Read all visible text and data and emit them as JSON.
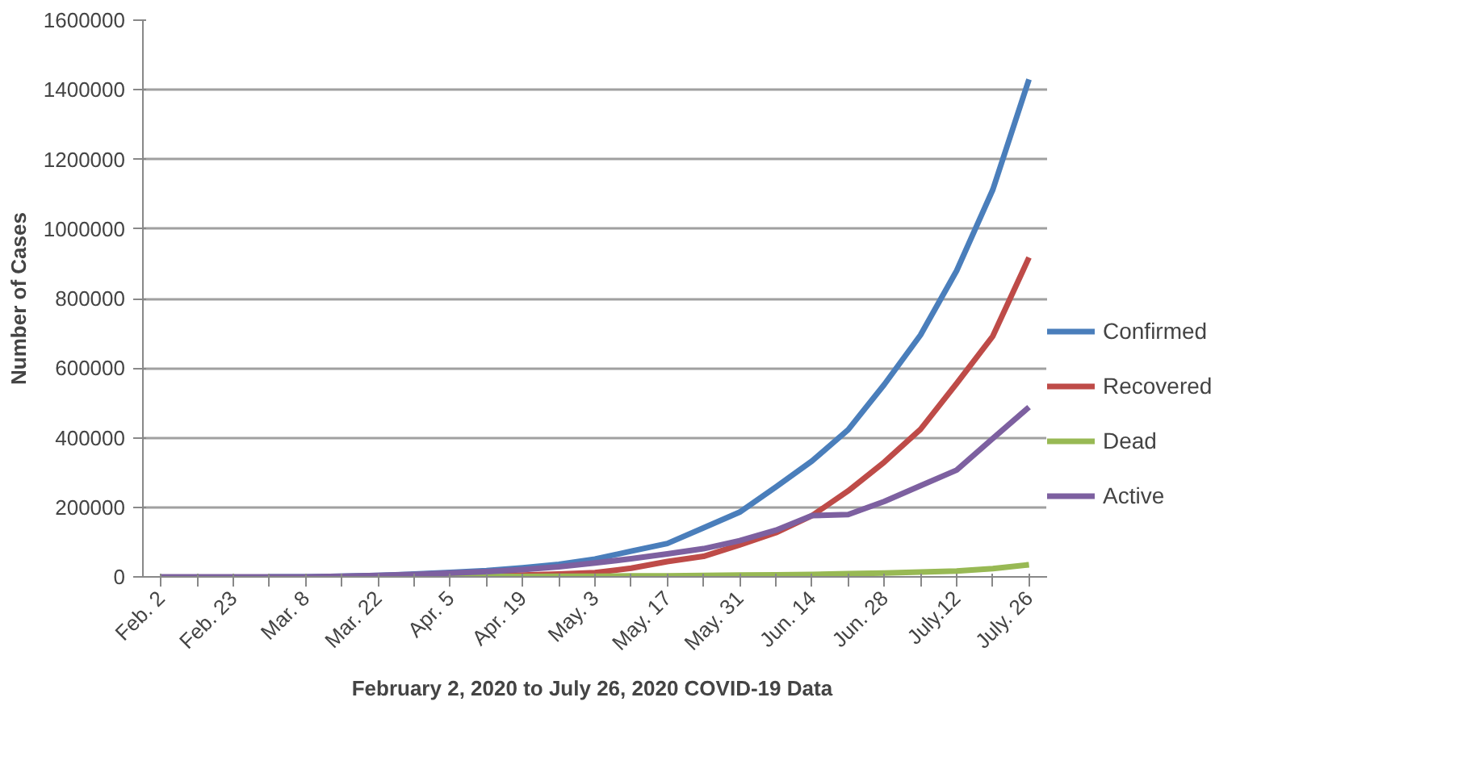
{
  "chart_data": {
    "type": "line",
    "xlabel": "February 2, 2020  to July 26, 2020 COVID-19 Data",
    "ylabel": "Number of Cases",
    "categories": [
      "Feb. 2",
      null,
      "Feb. 23",
      null,
      "Mar. 8",
      null,
      "Mar. 22",
      null,
      "Apr. 5",
      null,
      "Apr. 19",
      null,
      "May. 3",
      null,
      "May. 17",
      null,
      "May. 31",
      null,
      "Jun. 14",
      null,
      "Jun. 28",
      null,
      "July.12",
      null,
      "July. 26"
    ],
    "series": [
      {
        "name": "Confirmed",
        "color": "#4a7ebb",
        "values": [
          null,
          null,
          null,
          0,
          0,
          2000,
          4000,
          8000,
          13000,
          18000,
          26000,
          36000,
          51000,
          74000,
          96000,
          141000,
          186000,
          258000,
          333000,
          423000,
          553000,
          695000,
          880000,
          1113000,
          1430000
        ]
      },
      {
        "name": "Recovered",
        "color": "#be4b48",
        "values": [
          null,
          null,
          null,
          null,
          null,
          null,
          null,
          null,
          1000,
          3000,
          5000,
          8000,
          12000,
          25000,
          44000,
          59000,
          92000,
          127000,
          176000,
          247000,
          330000,
          424000,
          556000,
          692000,
          918000
        ]
      },
      {
        "name": "Dead",
        "color": "#98b954",
        "values": [
          null,
          null,
          null,
          null,
          null,
          null,
          null,
          0,
          0,
          1000,
          1000,
          2000,
          2000,
          3000,
          3000,
          4000,
          5000,
          6000,
          7000,
          9000,
          11000,
          14000,
          17000,
          24000,
          35000
        ]
      },
      {
        "name": "Active",
        "color": "#7d60a0",
        "values": [
          0,
          0,
          0,
          0,
          0,
          2000,
          4000,
          7000,
          11000,
          15000,
          21000,
          29000,
          40000,
          52000,
          66000,
          81000,
          104000,
          134000,
          176000,
          179000,
          217000,
          262000,
          307000,
          398000,
          488000
        ]
      }
    ],
    "ylim": [
      0,
      1600000
    ],
    "yticks": [
      0,
      200000,
      400000,
      600000,
      800000,
      1000000,
      1200000,
      1400000,
      1600000
    ],
    "grid": "y",
    "legend": "right",
    "marker": "none",
    "line_style": "solid"
  }
}
